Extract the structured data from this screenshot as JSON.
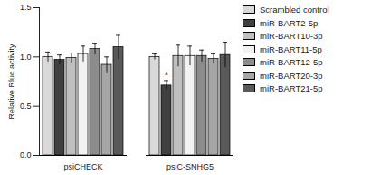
{
  "chart_data": {
    "type": "bar",
    "categories": [
      "psiCHECK",
      "psiC-SNHG5"
    ],
    "y_label": "Relative Rluc activity",
    "ylim": [
      0,
      1.5
    ],
    "yticks": [
      {
        "value": 0,
        "label": "0.0"
      },
      0.5,
      {
        "value": 1,
        "label": "1.0"
      },
      1.5
    ],
    "legend": "right",
    "series": [
      {
        "name": "Scrambled control",
        "color": "#d9d9d9",
        "values": [
          1.0,
          1.0
        ],
        "errors": [
          0.05,
          0.03
        ]
      },
      {
        "name": "miR-BART2-5p",
        "color": "#404040",
        "values": [
          0.97,
          0.71
        ],
        "errors": [
          0.05,
          0.05
        ]
      },
      {
        "name": "miR-BART10-3p",
        "color": "#bfbfbf",
        "values": [
          0.99,
          1.01
        ],
        "errors": [
          0.05,
          0.11
        ]
      },
      {
        "name": "miR-BART11-5p",
        "color": "#f2f2f2",
        "values": [
          1.03,
          1.01
        ],
        "errors": [
          0.08,
          0.1
        ]
      },
      {
        "name": "miR-BART12-5p",
        "color": "#8c8c8c",
        "values": [
          1.08,
          1.01
        ],
        "errors": [
          0.06,
          0.06
        ]
      },
      {
        "name": "miR-BART20-3p",
        "color": "#a6a6a6",
        "values": [
          0.92,
          0.98
        ],
        "errors": [
          0.08,
          0.05
        ]
      },
      {
        "name": "miR-BART21-5p",
        "color": "#595959",
        "values": [
          1.1,
          1.02
        ],
        "errors": [
          0.12,
          0.13
        ]
      }
    ],
    "annotations": [
      {
        "text": "*",
        "category": "psiC-SNHG5",
        "series": "miR-BART2-5p"
      }
    ]
  }
}
